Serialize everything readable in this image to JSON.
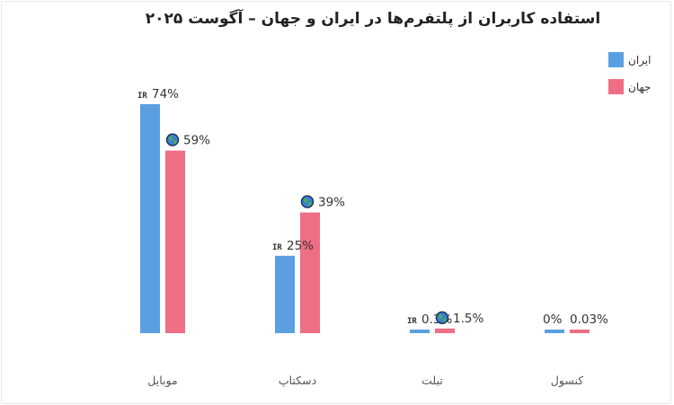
{
  "chart_data": {
    "type": "bar",
    "title": "استفاده کاربران از پلتفرم‌ها در ایران و جهان – آگوست ۲۰۲۵",
    "categories": [
      "موبایل",
      "دسکتاپ",
      "تبلت",
      "کنسول"
    ],
    "series": [
      {
        "name": "ایران",
        "color": "#5aa0e0",
        "badge": "IR",
        "values": [
          74,
          25,
          0.3,
          0
        ],
        "labels": [
          "74%",
          "25%",
          "0.3%",
          "0%"
        ]
      },
      {
        "name": "جهان",
        "color": "#ee6e85",
        "badge_icon": "globe-icon",
        "values": [
          59,
          39,
          1.5,
          0.03
        ],
        "labels": [
          "59%",
          "39%",
          "1.5%",
          "0.03%"
        ]
      }
    ],
    "ylim": [
      0,
      74
    ],
    "grid": false,
    "legend_position": "top-right"
  }
}
